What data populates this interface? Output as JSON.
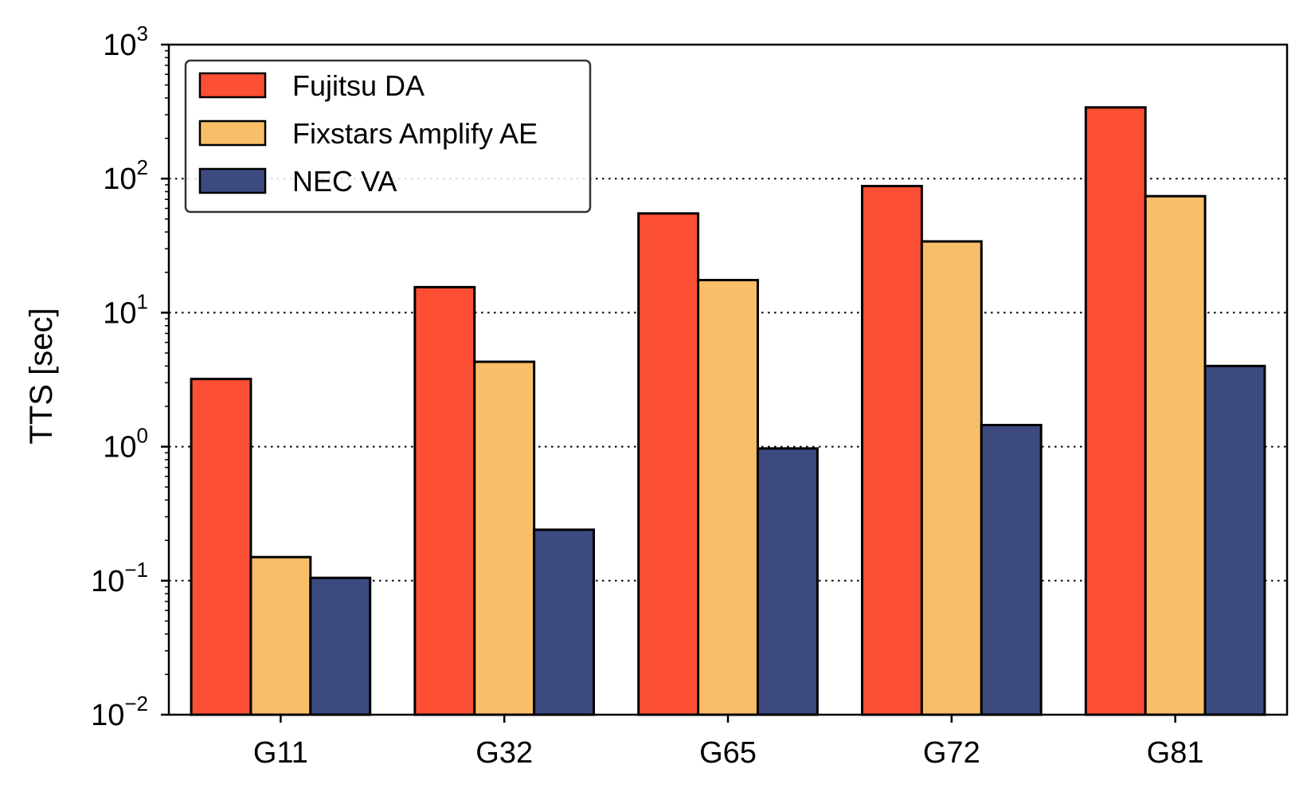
{
  "chart_data": {
    "type": "bar",
    "title": "",
    "xlabel": "",
    "ylabel": "TTS [sec]",
    "yscale": "log",
    "ylim": [
      0.01,
      1000
    ],
    "yticks": [
      {
        "base": "10",
        "exp": "−2",
        "value": 0.01
      },
      {
        "base": "10",
        "exp": "−1",
        "value": 0.1
      },
      {
        "base": "10",
        "exp": "0",
        "value": 1
      },
      {
        "base": "10",
        "exp": "1",
        "value": 10
      },
      {
        "base": "10",
        "exp": "2",
        "value": 100
      },
      {
        "base": "10",
        "exp": "3",
        "value": 1000
      }
    ],
    "categories": [
      "G11",
      "G32",
      "G65",
      "G72",
      "G81"
    ],
    "series": [
      {
        "name": "Fujitsu DA",
        "color": "#fc4f33",
        "values": [
          3.2,
          15.5,
          55,
          88,
          340
        ]
      },
      {
        "name": "Fixstars Amplify AE",
        "color": "#f9bf68",
        "values": [
          0.15,
          4.3,
          17.5,
          34,
          74
        ]
      },
      {
        "name": "NEC VA",
        "color": "#3c4a80",
        "values": [
          0.105,
          0.24,
          0.97,
          1.45,
          4.0
        ]
      }
    ],
    "grid": "horizontal dotted at major ticks 0.1-100",
    "legend_position": "top-left"
  }
}
